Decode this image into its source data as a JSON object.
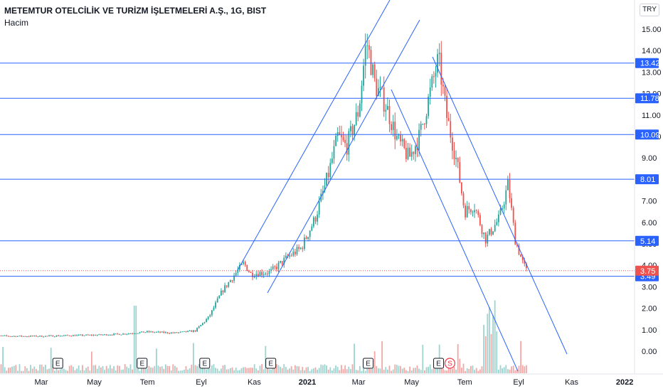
{
  "header": {
    "title": "METEMTUR OTELCİLİK VE TURİZM İŞLETMELERİ A.Ş., 1G, BIST",
    "volume_label": "Hacim",
    "currency": "TRY"
  },
  "colors": {
    "up": "#26a69a",
    "down": "#ef5350",
    "line": "#2962ff",
    "last_price": "#ef5350",
    "volume_up": "#9ed4cf",
    "volume_down": "#f5a7a6"
  },
  "chart_data": {
    "type": "candlestick",
    "symbol": "METEMTUR",
    "interval": "1G",
    "exchange": "BIST",
    "y_ticks": [
      "15.00",
      "14.00",
      "13.00",
      "12.00",
      "11.00",
      "10.00",
      "9.00",
      "8.00",
      "7.00",
      "6.00",
      "5.00",
      "4.00",
      "3.00",
      "2.00",
      "1.00",
      "0.00"
    ],
    "x_ticks": [
      "Mar",
      "May",
      "Tem",
      "Eyl",
      "Kas",
      "2021",
      "Mar",
      "May",
      "Tem",
      "Eyl",
      "Kas",
      "2022"
    ],
    "ylim": [
      -0.5,
      16
    ],
    "last_price": "3.75",
    "levels": [
      {
        "value": 13.42,
        "label": "13.42"
      },
      {
        "value": 11.78,
        "label": "11.78"
      },
      {
        "value": 10.09,
        "label": "10.09"
      },
      {
        "value": 8.01,
        "label": "8.01"
      },
      {
        "value": 5.14,
        "label": "5.14"
      },
      {
        "value": 3.49,
        "label": "3.49"
      }
    ],
    "price_path": [
      [
        "2020-01-02",
        0.72
      ],
      [
        "2020-02-01",
        0.7
      ],
      [
        "2020-03-01",
        0.7
      ],
      [
        "2020-04-01",
        0.73
      ],
      [
        "2020-05-01",
        0.75
      ],
      [
        "2020-06-01",
        0.8
      ],
      [
        "2020-07-01",
        0.9
      ],
      [
        "2020-08-01",
        0.85
      ],
      [
        "2020-08-25",
        0.95
      ],
      [
        "2020-09-10",
        1.6
      ],
      [
        "2020-09-25",
        2.8
      ],
      [
        "2020-10-10",
        3.6
      ],
      [
        "2020-10-20",
        4.1
      ],
      [
        "2020-10-28",
        3.6
      ],
      [
        "2020-11-20",
        3.7
      ],
      [
        "2020-12-10",
        4.4
      ],
      [
        "2020-12-25",
        4.8
      ],
      [
        "2021-01-10",
        6.2
      ],
      [
        "2021-01-25",
        8.2
      ],
      [
        "2021-02-05",
        10.0
      ],
      [
        "2021-02-15",
        9.5
      ],
      [
        "2021-03-01",
        11.2
      ],
      [
        "2021-03-10",
        14.5
      ],
      [
        "2021-03-20",
        12.4
      ],
      [
        "2021-04-01",
        11.5
      ],
      [
        "2021-04-15",
        9.8
      ],
      [
        "2021-04-28",
        9.0
      ],
      [
        "2021-05-10",
        10.0
      ],
      [
        "2021-05-25",
        12.5
      ],
      [
        "2021-06-01",
        13.6
      ],
      [
        "2021-06-10",
        11.0
      ],
      [
        "2021-06-22",
        8.8
      ],
      [
        "2021-07-01",
        6.5
      ],
      [
        "2021-07-12",
        6.8
      ],
      [
        "2021-07-25",
        5.2
      ],
      [
        "2021-08-10",
        6.2
      ],
      [
        "2021-08-20",
        7.8
      ],
      [
        "2021-08-28",
        5.2
      ],
      [
        "2021-09-05",
        4.2
      ],
      [
        "2021-09-10",
        3.75
      ]
    ],
    "events": [
      {
        "date": "2020-03-20",
        "label": "E"
      },
      {
        "date": "2020-06-25",
        "label": "E"
      },
      {
        "date": "2020-09-05",
        "label": "E"
      },
      {
        "date": "2020-11-20",
        "label": "E"
      },
      {
        "date": "2021-03-12",
        "label": "E"
      },
      {
        "date": "2021-06-01",
        "label": "E"
      },
      {
        "date": "2021-06-14",
        "label": "S"
      }
    ],
    "grid": false,
    "legend": "top-left"
  }
}
